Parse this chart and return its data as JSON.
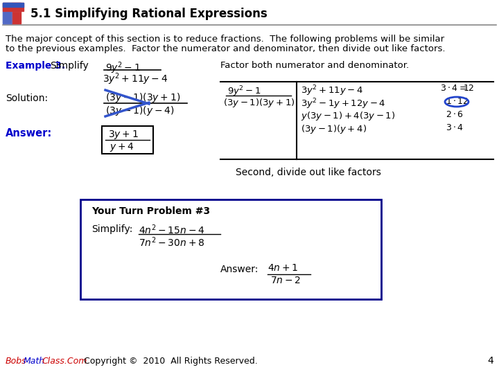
{
  "title": "5.1 Simplifying Rational Expressions",
  "bg_color": "#ffffff",
  "intro_line1": "The major concept of this section is to reduce fractions.  The following problems will be similar",
  "intro_line2": "to the previous examples.  Factor the numerator and denominator, then divide out like factors.",
  "example_label": "Example 3.",
  "simplify_label": "Simplify",
  "factor_text": "Factor both numerator and denominator.",
  "solution_label": "Solution:",
  "answer_label": "Answer:",
  "second_text": "Second, divide out like factors",
  "your_turn_label": "Your Turn Problem #3",
  "simplify2_label": "Simplify:",
  "answer2_label": "Answer:",
  "footer_copy": "  Copyright ©  2010  All Rights Reserved.",
  "footer_page": "4",
  "blue_color": "#0000cc",
  "dark_blue": "#00008B",
  "red_color": "#cc0000",
  "text_color": "#000000"
}
